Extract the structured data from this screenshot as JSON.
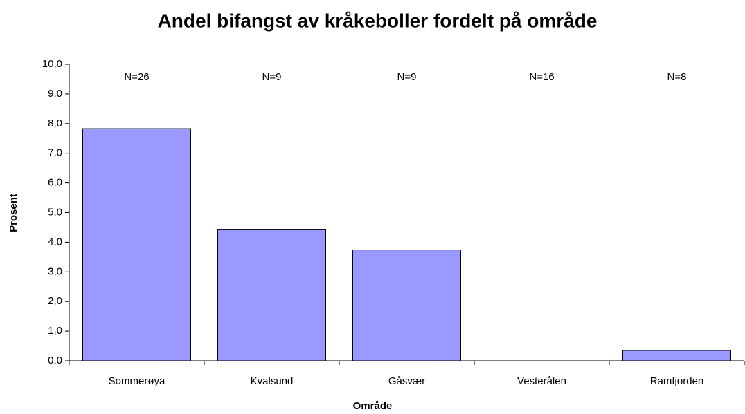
{
  "chart_data": {
    "type": "bar",
    "title": "Andel bifangst av kråkeboller fordelt på område",
    "x_label": "Område",
    "y_label": "Prosent",
    "categories": [
      "Sommerøya",
      "Kvalsund",
      "Gåsvær",
      "Vesterålen",
      "Ramfjorden"
    ],
    "values": [
      7.83,
      4.42,
      3.74,
      0,
      0.35
    ],
    "annotations": [
      "N=26",
      "N=9",
      "N=9",
      "N=16",
      "N=8"
    ],
    "color": "#9999ff",
    "ylim": [
      0,
      10
    ],
    "yticks": [
      {
        "value": 0,
        "label": "0,0"
      },
      {
        "value": 1,
        "label": "1,0"
      },
      {
        "value": 2,
        "label": "2,0"
      },
      {
        "value": 3,
        "label": "3,0"
      },
      {
        "value": 4,
        "label": "4,0"
      },
      {
        "value": 5,
        "label": "5,0"
      },
      {
        "value": 6,
        "label": "6,0"
      },
      {
        "value": 7,
        "label": "7,0"
      },
      {
        "value": 8,
        "label": "8,0"
      },
      {
        "value": 9,
        "label": "9,0"
      },
      {
        "value": 10,
        "label": "10,0"
      }
    ],
    "grid": false
  }
}
